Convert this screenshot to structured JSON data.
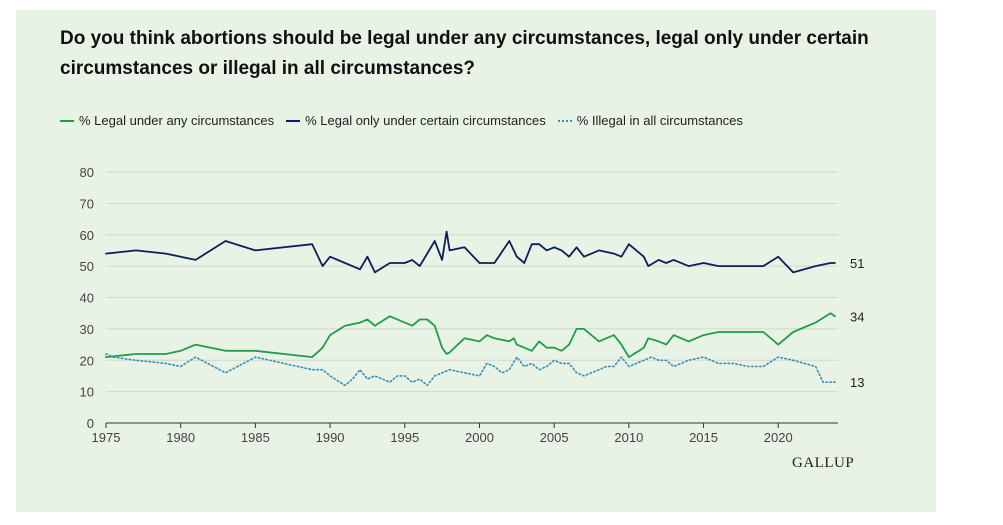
{
  "brand": "GALLUP",
  "chart_data": {
    "type": "line",
    "title": "Do you think abortions should be legal under any circumstances, legal only under certain circumstances or illegal in all circumstances?",
    "xlabel": "",
    "ylabel": "",
    "xlim": [
      1975,
      2024
    ],
    "ylim": [
      0,
      80
    ],
    "x_ticks": [
      "1975",
      "1980",
      "1985",
      "1990",
      "1995",
      "2000",
      "2005",
      "2010",
      "2015",
      "2020"
    ],
    "y_ticks": [
      "0",
      "10",
      "20",
      "30",
      "40",
      "50",
      "60",
      "70",
      "80"
    ],
    "grid": "horizontal",
    "legend_position": "top-left",
    "colors": {
      "legal_any": "#1e9e4a",
      "legal_certain": "#0f1d5c",
      "illegal": "#3a8fb8"
    },
    "series": [
      {
        "name": "% Legal under any circumstances",
        "key": "legal_any",
        "style": "solid",
        "end_label": "34",
        "x": [
          1975,
          1977,
          1979,
          1980,
          1981,
          1983,
          1985,
          1988.8,
          1989.5,
          1990,
          1991,
          1992,
          1992.5,
          1993,
          1994,
          1995,
          1995.5,
          1996,
          1996.5,
          1997,
          1997.5,
          1997.8,
          1998,
          1999,
          2000,
          2000.5,
          2001,
          2002,
          2002.3,
          2002.5,
          2003,
          2003.5,
          2004,
          2004.5,
          2005,
          2005.5,
          2006,
          2006.5,
          2007,
          2008,
          2009,
          2009.5,
          2010,
          2011,
          2011.3,
          2012,
          2012.5,
          2013,
          2014,
          2015,
          2016,
          2017,
          2018,
          2019,
          2020,
          2021,
          2022.5,
          2023.5
        ],
        "values": [
          21,
          22,
          22,
          23,
          25,
          23,
          23,
          21,
          24,
          28,
          31,
          32,
          33,
          31,
          34,
          32,
          31,
          33,
          33,
          31,
          24,
          22,
          22.5,
          27,
          26,
          28,
          27,
          26,
          27,
          25,
          24,
          23,
          26,
          24,
          24,
          23,
          25,
          30,
          30,
          26,
          28,
          25,
          21,
          24,
          27,
          26,
          25,
          28,
          26,
          28,
          29,
          29,
          29,
          29,
          25,
          29,
          32,
          35
        ],
        "last": [
          2023.8,
          34
        ]
      },
      {
        "name": "% Legal only under certain circumstances",
        "key": "legal_certain",
        "style": "solid",
        "end_label": "51",
        "x": [
          1975,
          1977,
          1979,
          1980,
          1981,
          1983,
          1985,
          1988.8,
          1989.5,
          1990,
          1991,
          1992,
          1992.5,
          1993,
          1994,
          1995,
          1995.5,
          1996,
          1996.5,
          1997,
          1997.5,
          1997.8,
          1998,
          1999,
          2000,
          2000.5,
          2001,
          2002,
          2002.3,
          2002.5,
          2003,
          2003.5,
          2004,
          2004.5,
          2005,
          2005.5,
          2006,
          2006.5,
          2007,
          2008,
          2009,
          2009.5,
          2010,
          2011,
          2011.3,
          2012,
          2012.5,
          2013,
          2014,
          2015,
          2016,
          2017,
          2018,
          2019,
          2020,
          2021,
          2022.5,
          2023.5
        ],
        "values": [
          54,
          55,
          54,
          53,
          52,
          58,
          55,
          57,
          50,
          53,
          51,
          49,
          53,
          48,
          51,
          51,
          52,
          50,
          54,
          58,
          52,
          61,
          55,
          56,
          51,
          51,
          51,
          58,
          55,
          53,
          51,
          57,
          57,
          55,
          56,
          55,
          53,
          56,
          53,
          55,
          54,
          53,
          57,
          53,
          50,
          52,
          51,
          52,
          50,
          51,
          50,
          50,
          50,
          50,
          53,
          48,
          50,
          51
        ],
        "last": [
          2023.8,
          51
        ]
      },
      {
        "name": "% Illegal in all circumstances",
        "key": "illegal",
        "style": "dotted",
        "end_label": "13",
        "x": [
          1975,
          1975.5,
          1977,
          1979,
          1980,
          1981,
          1983,
          1985,
          1988.8,
          1989.5,
          1990,
          1991,
          1991.5,
          1992,
          1992.5,
          1993,
          1994,
          1994.5,
          1995,
          1995.5,
          1996,
          1996.5,
          1997,
          1997.5,
          1998,
          1999,
          2000,
          2000.5,
          2001,
          2001.5,
          2002,
          2002.5,
          2003,
          2003.5,
          2004,
          2004.5,
          2005,
          2005.5,
          2006,
          2006.5,
          2007,
          2008,
          2008.5,
          2009,
          2009.5,
          2010,
          2011,
          2011.5,
          2012,
          2012.5,
          2013,
          2014,
          2015,
          2016,
          2017,
          2018,
          2019,
          2020,
          2021,
          2022.5,
          2023,
          2023.5
        ],
        "values": [
          22,
          21,
          20,
          19,
          18,
          21,
          16,
          21,
          17,
          17,
          15,
          12,
          14,
          17,
          14,
          15,
          13,
          15,
          15,
          13,
          14,
          12,
          15,
          16,
          17,
          16,
          15,
          19,
          18,
          16,
          17,
          21,
          18,
          19,
          17,
          18,
          20,
          19,
          19,
          16,
          15,
          17,
          18,
          18,
          21,
          18,
          20,
          21,
          20,
          20,
          18,
          20,
          21,
          19,
          19,
          18,
          18,
          21,
          20,
          18,
          13,
          13
        ],
        "last": [
          2023.8,
          13
        ]
      }
    ]
  }
}
